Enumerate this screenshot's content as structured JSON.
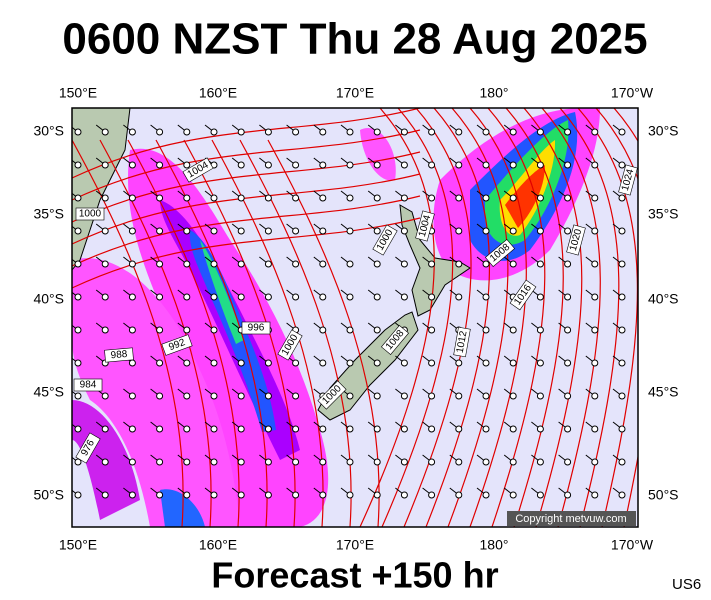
{
  "header": {
    "title": "0600 NZST Thu 28 Aug 2025"
  },
  "map": {
    "top_labels": [
      "150°E",
      "160°E",
      "170°E",
      "180°",
      "170°W"
    ],
    "bottom_labels": [
      "150°E",
      "160°E",
      "170°E",
      "180°",
      "170°W"
    ],
    "left_labels": [
      "30°S",
      "35°S",
      "40°S",
      "45°S",
      "50°S"
    ],
    "right_labels": [
      "30°S",
      "35°S",
      "40°S",
      "45°S",
      "50°S"
    ],
    "isobar_labels": [
      "1004",
      "1000",
      "1000",
      "1004",
      "1008",
      "1016",
      "1020",
      "1024",
      "996",
      "1000",
      "992",
      "988",
      "984",
      "976",
      "1008",
      "1012",
      "1000"
    ],
    "copyright": "Copyright metvuw.com"
  },
  "footer": {
    "caption": "Forecast +150 hr",
    "code": "US6"
  }
}
